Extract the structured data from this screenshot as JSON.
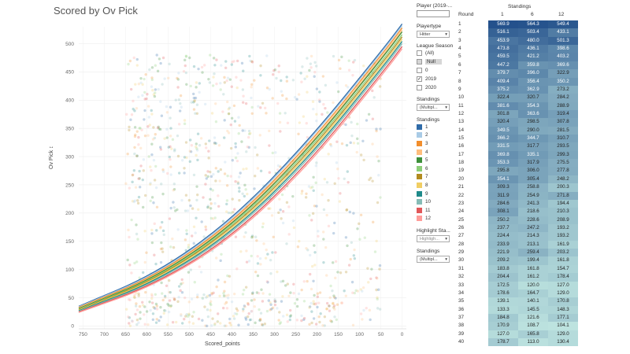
{
  "title": "Scored by Ov Pick",
  "chart_data": {
    "type": "scatter",
    "xlabel": "Scored_points",
    "ylabel": "Ov Pick",
    "x_ticks": [
      "750",
      "700",
      "650",
      "600",
      "550",
      "500",
      "450",
      "400",
      "350",
      "300",
      "250",
      "200",
      "150",
      "100",
      "50",
      "0"
    ],
    "y_ticks": [
      "500",
      "450",
      "400",
      "350",
      "300",
      "250",
      "200",
      "150",
      "100",
      "50",
      "0"
    ],
    "xlim": [
      760,
      -10
    ],
    "ylim": [
      -5,
      530
    ],
    "x_reversed": true,
    "grid": true,
    "series": [
      {
        "name": "1",
        "color": "#2f6ba8",
        "trend": [
          [
            760,
            35
          ],
          [
            580,
            92
          ],
          [
            400,
            188
          ],
          [
            220,
            328
          ],
          [
            40,
            495
          ],
          [
            0,
            535
          ]
        ]
      },
      {
        "name": "2",
        "color": "#a9cbe6",
        "trend": [
          [
            760,
            34
          ],
          [
            580,
            90
          ],
          [
            400,
            185
          ],
          [
            220,
            325
          ],
          [
            40,
            492
          ],
          [
            0,
            532
          ]
        ]
      },
      {
        "name": "3",
        "color": "#f28e2c",
        "trend": [
          [
            760,
            33
          ],
          [
            580,
            88
          ],
          [
            400,
            182
          ],
          [
            220,
            320
          ],
          [
            40,
            488
          ],
          [
            0,
            528
          ]
        ]
      },
      {
        "name": "4",
        "color": "#ffbe7d",
        "trend": [
          [
            760,
            32
          ],
          [
            580,
            86
          ],
          [
            400,
            179
          ],
          [
            220,
            316
          ],
          [
            40,
            484
          ],
          [
            0,
            524
          ]
        ]
      },
      {
        "name": "5",
        "color": "#3d8f3a",
        "trend": [
          [
            760,
            31
          ],
          [
            580,
            85
          ],
          [
            400,
            177
          ],
          [
            220,
            313
          ],
          [
            40,
            481
          ],
          [
            0,
            521
          ]
        ]
      },
      {
        "name": "6",
        "color": "#8dcf7a",
        "trend": [
          [
            760,
            30
          ],
          [
            580,
            83
          ],
          [
            400,
            174
          ],
          [
            220,
            309
          ],
          [
            40,
            476
          ],
          [
            0,
            516
          ]
        ]
      },
      {
        "name": "7",
        "color": "#b28b1f",
        "trend": [
          [
            760,
            29
          ],
          [
            580,
            82
          ],
          [
            400,
            171
          ],
          [
            220,
            305
          ],
          [
            40,
            472
          ],
          [
            0,
            512
          ]
        ]
      },
      {
        "name": "8",
        "color": "#f1ce63",
        "trend": [
          [
            760,
            28
          ],
          [
            580,
            80
          ],
          [
            400,
            168
          ],
          [
            220,
            301
          ],
          [
            40,
            468
          ],
          [
            0,
            508
          ]
        ]
      },
      {
        "name": "9",
        "color": "#1f8a8a",
        "trend": [
          [
            760,
            27
          ],
          [
            580,
            78
          ],
          [
            400,
            165
          ],
          [
            220,
            297
          ],
          [
            40,
            464
          ],
          [
            0,
            504
          ]
        ]
      },
      {
        "name": "10",
        "color": "#86bcb6",
        "trend": [
          [
            760,
            26
          ],
          [
            580,
            76
          ],
          [
            400,
            162
          ],
          [
            220,
            293
          ],
          [
            40,
            460
          ],
          [
            0,
            500
          ]
        ]
      },
      {
        "name": "11",
        "color": "#e15759",
        "trend": [
          [
            760,
            25
          ],
          [
            580,
            74
          ],
          [
            400,
            158
          ],
          [
            220,
            288
          ],
          [
            40,
            455
          ],
          [
            0,
            495
          ]
        ]
      },
      {
        "name": "12",
        "color": "#ff9d9a",
        "trend": [
          [
            760,
            24
          ],
          [
            580,
            72
          ],
          [
            400,
            155
          ],
          [
            220,
            284
          ],
          [
            40,
            451
          ],
          [
            0,
            491
          ]
        ]
      }
    ]
  },
  "panel": {
    "player_label": "Player (2019-...",
    "playertype_label": "Playertype",
    "playertype_value": "Hitter",
    "league_season_label": "League Season",
    "seasons": [
      {
        "label": "(All)",
        "checked": false
      },
      {
        "label": "Null",
        "checked": false,
        "null": true
      },
      {
        "label": "0",
        "checked": false
      },
      {
        "label": "2019",
        "checked": true
      },
      {
        "label": "2020",
        "checked": false
      }
    ],
    "standings_filter_label": "Standings",
    "standings_filter_value": "(Multipl...",
    "standings_legend_label": "Standings",
    "highlight_label": "Highlight Sta...",
    "highlight_placeholder": "Highligh...",
    "standings2_label": "Standings",
    "standings2_value": "(Multipl..."
  },
  "table": {
    "header": "Standings",
    "round_label": "Round",
    "columns": [
      "1",
      "6",
      "12"
    ],
    "rows": [
      [
        "1",
        "569.9",
        "564.3",
        "549.4"
      ],
      [
        "2",
        "516.1",
        "503.4",
        "433.1"
      ],
      [
        "3",
        "453.9",
        "480.0",
        "501.3"
      ],
      [
        "4",
        "473.8",
        "436.1",
        "398.6"
      ],
      [
        "5",
        "459.5",
        "421.2",
        "403.2"
      ],
      [
        "6",
        "447.2",
        "359.8",
        "369.6"
      ],
      [
        "7",
        "379.7",
        "396.0",
        "322.9"
      ],
      [
        "8",
        "409.4",
        "356.4",
        "350.2"
      ],
      [
        "9",
        "375.2",
        "362.9",
        "273.2"
      ],
      [
        "10",
        "322.4",
        "320.7",
        "284.2"
      ],
      [
        "11",
        "381.6",
        "354.3",
        "288.9"
      ],
      [
        "12",
        "301.8",
        "363.6",
        "319.4"
      ],
      [
        "13",
        "320.4",
        "298.5",
        "307.8"
      ],
      [
        "14",
        "349.5",
        "290.0",
        "281.5"
      ],
      [
        "15",
        "366.2",
        "344.7",
        "310.7"
      ],
      [
        "16",
        "331.5",
        "317.7",
        "293.5"
      ],
      [
        "17",
        "369.8",
        "335.1",
        "299.3"
      ],
      [
        "18",
        "353.3",
        "317.9",
        "275.5"
      ],
      [
        "19",
        "295.8",
        "306.0",
        "277.8"
      ],
      [
        "20",
        "354.1",
        "305.4",
        "248.2"
      ],
      [
        "21",
        "309.3",
        "258.8",
        "200.3"
      ],
      [
        "22",
        "311.9",
        "254.9",
        "271.8"
      ],
      [
        "23",
        "284.6",
        "241.3",
        "194.4"
      ],
      [
        "24",
        "308.1",
        "218.6",
        "210.3"
      ],
      [
        "25",
        "250.2",
        "228.6",
        "208.9"
      ],
      [
        "26",
        "237.7",
        "247.2",
        "193.2"
      ],
      [
        "27",
        "224.4",
        "214.3",
        "193.2"
      ],
      [
        "28",
        "233.9",
        "213.1",
        "161.9"
      ],
      [
        "29",
        "221.9",
        "259.4",
        "203.2"
      ],
      [
        "30",
        "209.2",
        "199.4",
        "161.8"
      ],
      [
        "31",
        "183.8",
        "161.8",
        "154.7"
      ],
      [
        "32",
        "204.4",
        "161.2",
        "178.4"
      ],
      [
        "33",
        "172.5",
        "120.0",
        "127.0"
      ],
      [
        "34",
        "178.6",
        "164.7",
        "129.0"
      ],
      [
        "35",
        "139.1",
        "140.1",
        "170.8"
      ],
      [
        "36",
        "133.3",
        "145.5",
        "148.3"
      ],
      [
        "37",
        "184.8",
        "121.6",
        "177.1"
      ],
      [
        "38",
        "170.9",
        "108.7",
        "104.1"
      ],
      [
        "39",
        "127.0",
        "165.8",
        "129.0"
      ],
      [
        "40",
        "178.7",
        "113.0",
        "130.4"
      ]
    ]
  }
}
